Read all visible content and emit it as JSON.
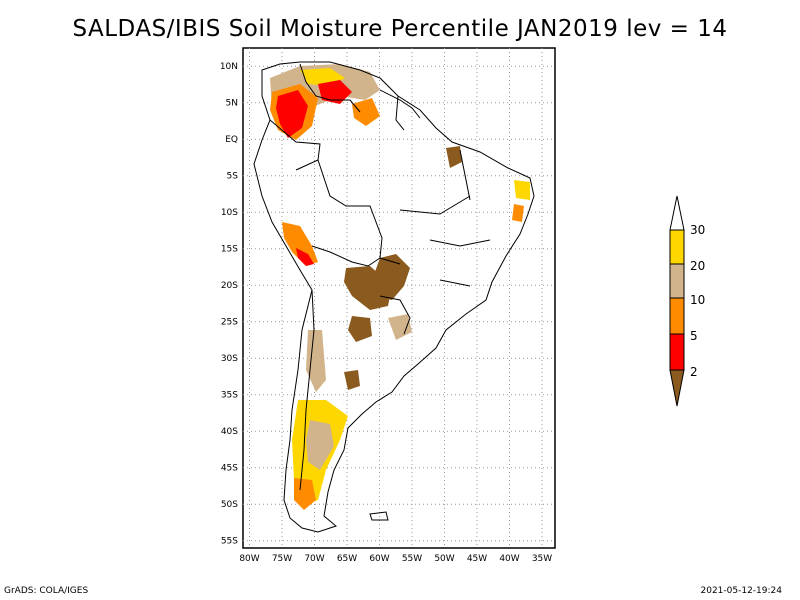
{
  "title": "SALDAS/IBIS Soil Moisture Percentile JAN2019 lev = 14",
  "footer": {
    "software": "GrADS: COLA/IGES",
    "timestamp": "2021-05-12-19:24"
  },
  "axes": {
    "lon_labels": [
      "80W",
      "75W",
      "70W",
      "65W",
      "60W",
      "55W",
      "50W",
      "45W",
      "40W",
      "35W"
    ],
    "lon_values": [
      -80,
      -75,
      -70,
      -65,
      -60,
      -55,
      -50,
      -45,
      -40,
      -35
    ],
    "lat_labels": [
      "10N",
      "5N",
      "EQ",
      "5S",
      "10S",
      "15S",
      "20S",
      "25S",
      "30S",
      "35S",
      "40S",
      "45S",
      "50S",
      "55S"
    ],
    "lat_values": [
      10,
      5,
      0,
      -5,
      -10,
      -15,
      -20,
      -25,
      -30,
      -35,
      -40,
      -45,
      -50,
      -55
    ],
    "lon_range": [
      -81,
      -33
    ],
    "lat_range": [
      12.5,
      -56
    ],
    "gridlines": true
  },
  "legend": {
    "labels": [
      "2",
      "5",
      "10",
      "20",
      "30"
    ],
    "colors": [
      "#8b5a1e",
      "#ff0000",
      "#ff8c00",
      "#d2b48c",
      "#ffd700",
      "#ffffff"
    ]
  },
  "colors": {
    "brown": "#8b5a1e",
    "red": "#ff0000",
    "orange": "#ff8c00",
    "tan": "#d2b48c",
    "gold": "#ffd700"
  }
}
